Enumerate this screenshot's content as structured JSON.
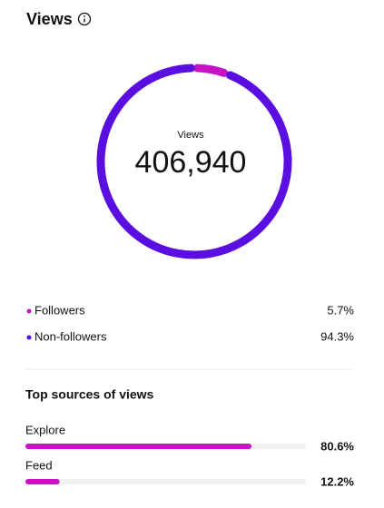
{
  "header": {
    "title": "Views"
  },
  "donut": {
    "label": "Views",
    "total": "406,940",
    "segments": [
      {
        "name": "Followers",
        "value": 5.7,
        "value_label": "5.7%",
        "color": "#c812c8"
      },
      {
        "name": "Non-followers",
        "value": 94.3,
        "value_label": "94.3%",
        "color": "#5a0fe0"
      }
    ]
  },
  "sources": {
    "title": "Top sources of views",
    "color": "#c812c8",
    "track_color": "#f1f1f1",
    "items": [
      {
        "name": "Explore",
        "value": 80.6,
        "value_label": "80.6%"
      },
      {
        "name": "Feed",
        "value": 12.2,
        "value_label": "12.2%"
      }
    ]
  }
}
